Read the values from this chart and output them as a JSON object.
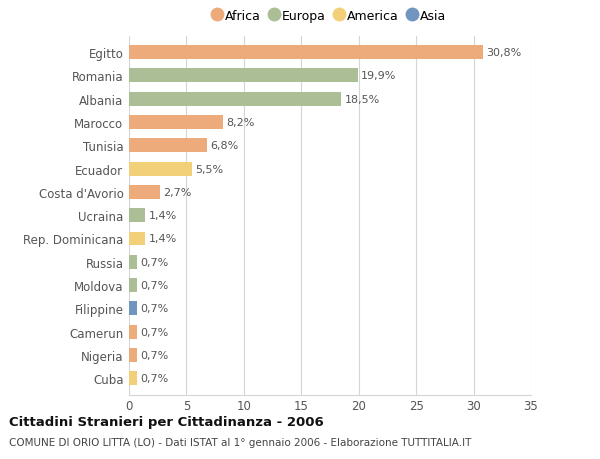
{
  "countries": [
    "Egitto",
    "Romania",
    "Albania",
    "Marocco",
    "Tunisia",
    "Ecuador",
    "Costa d'Avorio",
    "Ucraina",
    "Rep. Dominicana",
    "Russia",
    "Moldova",
    "Filippine",
    "Camerun",
    "Nigeria",
    "Cuba"
  ],
  "values": [
    30.8,
    19.9,
    18.5,
    8.2,
    6.8,
    5.5,
    2.7,
    1.4,
    1.4,
    0.7,
    0.7,
    0.7,
    0.7,
    0.7,
    0.7
  ],
  "labels": [
    "30,8%",
    "19,9%",
    "18,5%",
    "8,2%",
    "6,8%",
    "5,5%",
    "2,7%",
    "1,4%",
    "1,4%",
    "0,7%",
    "0,7%",
    "0,7%",
    "0,7%",
    "0,7%",
    "0,7%"
  ],
  "continents": [
    "Africa",
    "Europa",
    "Europa",
    "Africa",
    "Africa",
    "America",
    "Africa",
    "Europa",
    "America",
    "Europa",
    "Europa",
    "Asia",
    "Africa",
    "Africa",
    "America"
  ],
  "continent_colors": {
    "Africa": "#EDAA7A",
    "Europa": "#ABBE96",
    "America": "#F2D07A",
    "Asia": "#7096C0"
  },
  "legend_order": [
    "Africa",
    "Europa",
    "America",
    "Asia"
  ],
  "title_bold": "Cittadini Stranieri per Cittadinanza - 2006",
  "subtitle": "COMUNE DI ORIO LITTA (LO) - Dati ISTAT al 1° gennaio 2006 - Elaborazione TUTTITALIA.IT",
  "xlim": [
    0,
    35
  ],
  "xticks": [
    0,
    5,
    10,
    15,
    20,
    25,
    30,
    35
  ],
  "background_color": "#ffffff",
  "bar_height": 0.6,
  "grid_color": "#d5d5d5"
}
